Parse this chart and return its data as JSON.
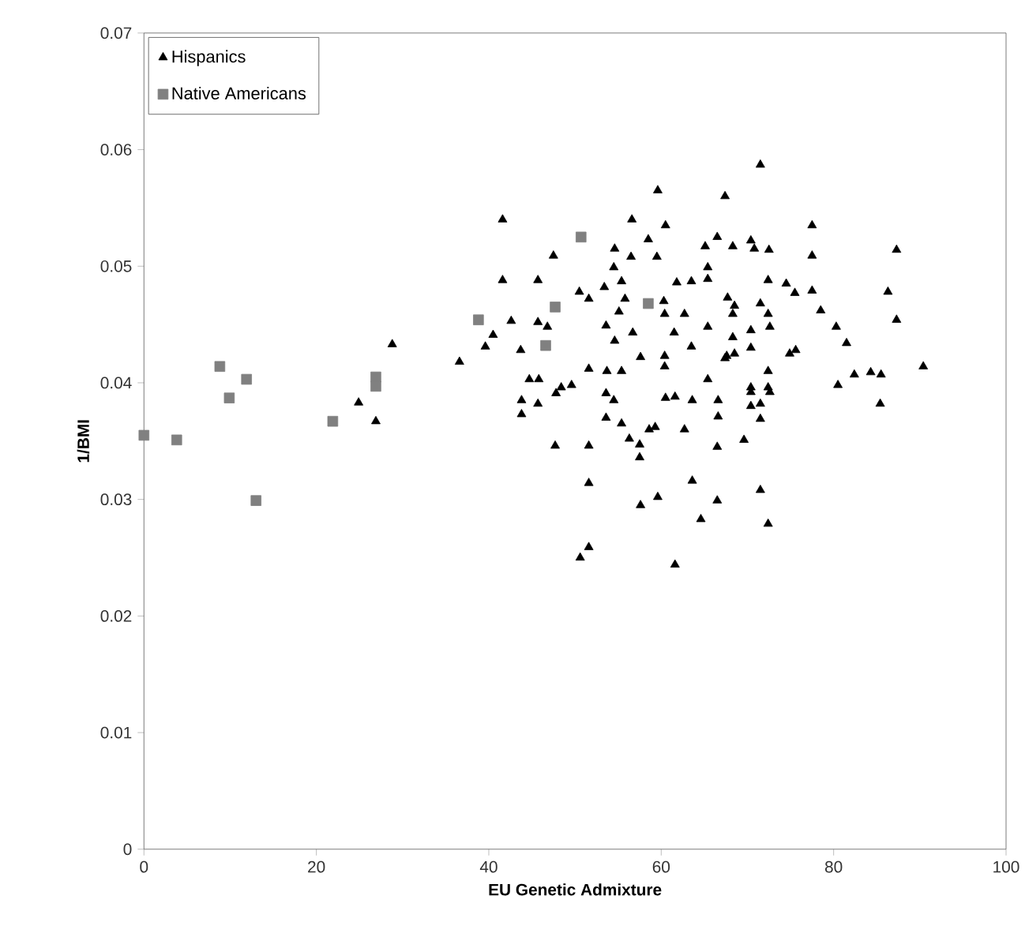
{
  "chart_data": {
    "type": "scatter",
    "xlabel": "EU Genetic Admixture",
    "ylabel": "1/BMI",
    "xlim": [
      0,
      100
    ],
    "xticks": [
      0,
      20,
      40,
      60,
      80,
      100
    ],
    "ylim": [
      0,
      0.07
    ],
    "yticks": [
      0,
      0.01,
      0.02,
      0.03,
      0.04,
      0.05,
      0.06,
      0.07
    ],
    "legend": "top left",
    "grid": false,
    "series": [
      {
        "name": "Hispanics",
        "color": "#000000",
        "marker": "triangle",
        "x": [
          28.8,
          24.9,
          26.9,
          36.6,
          59.6,
          67.4,
          41.6,
          56.6,
          60.5,
          58.5,
          54.6,
          47.5,
          56.5,
          59.5,
          65.1,
          66.5,
          68.3,
          54.5,
          65.4,
          41.6,
          45.7,
          55.4,
          65.4,
          50.5,
          51.6,
          53.4,
          55.8,
          61.8,
          63.5,
          67.7,
          60.3,
          55.1,
          60.4,
          42.6,
          45.7,
          46.8,
          62.7,
          68.3,
          40.5,
          39.6,
          43.7,
          53.6,
          56.7,
          61.5,
          65.4,
          68.3,
          54.6,
          57.6,
          60.4,
          63.5,
          44.7,
          45.8,
          51.6,
          53.7,
          55.4,
          60.4,
          65.4,
          67.6,
          48.4,
          47.8,
          49.6,
          43.8,
          43.8,
          45.7,
          53.6,
          54.5,
          53.6,
          55.4,
          60.5,
          61.6,
          63.6,
          66.6,
          66.6,
          59.3,
          58.6,
          56.3,
          57.5,
          57.5,
          62.7,
          47.7,
          51.6,
          66.5,
          51.6,
          63.6,
          59.6,
          57.6,
          66.5,
          64.6,
          51.6,
          50.6,
          61.6,
          71.5,
          77.5,
          70.4,
          70.8,
          72.5,
          77.5,
          87.3,
          72.4,
          74.5,
          75.5,
          77.5,
          86.3,
          68.5,
          71.5,
          72.4,
          72.6,
          78.5,
          87.3,
          70.4,
          80.3,
          81.5,
          74.9,
          75.6,
          70.4,
          67.4,
          68.5,
          72.4,
          70.4,
          72.4,
          80.5,
          82.4,
          84.3,
          85.5,
          90.4,
          85.4,
          70.4,
          72.6,
          70.4,
          71.5,
          71.5,
          69.6,
          71.5,
          72.4
        ],
        "values": [
          0.0433,
          0.0383,
          0.0367,
          0.0418,
          0.0565,
          0.056,
          0.054,
          0.054,
          0.0535,
          0.0523,
          0.0515,
          0.0509,
          0.0508,
          0.0508,
          0.0517,
          0.0525,
          0.0517,
          0.0499,
          0.0499,
          0.0488,
          0.0488,
          0.0487,
          0.0489,
          0.0478,
          0.0472,
          0.0482,
          0.0472,
          0.0486,
          0.0487,
          0.0473,
          0.047,
          0.0461,
          0.0459,
          0.0453,
          0.0452,
          0.0448,
          0.0459,
          0.0459,
          0.0441,
          0.0431,
          0.0428,
          0.0449,
          0.0443,
          0.0443,
          0.0448,
          0.0439,
          0.0436,
          0.0422,
          0.0423,
          0.0431,
          0.0403,
          0.0403,
          0.0412,
          0.041,
          0.041,
          0.0414,
          0.0403,
          0.0423,
          0.0396,
          0.0391,
          0.0398,
          0.0385,
          0.0373,
          0.0382,
          0.0391,
          0.0385,
          0.037,
          0.0365,
          0.0387,
          0.0388,
          0.0385,
          0.0385,
          0.0371,
          0.0362,
          0.036,
          0.0352,
          0.0347,
          0.0336,
          0.036,
          0.0346,
          0.0346,
          0.0345,
          0.0314,
          0.0316,
          0.0302,
          0.0295,
          0.0299,
          0.0283,
          0.0259,
          0.025,
          0.0244,
          0.0587,
          0.0535,
          0.0522,
          0.0515,
          0.0514,
          0.0509,
          0.0514,
          0.0488,
          0.0485,
          0.0477,
          0.0479,
          0.0478,
          0.0466,
          0.0468,
          0.0459,
          0.0448,
          0.0462,
          0.0454,
          0.0445,
          0.0448,
          0.0434,
          0.0425,
          0.0428,
          0.043,
          0.0421,
          0.0425,
          0.041,
          0.0396,
          0.0396,
          0.0398,
          0.0407,
          0.0409,
          0.0407,
          0.0414,
          0.0382,
          0.0392,
          0.0392,
          0.038,
          0.0382,
          0.0369,
          0.0351,
          0.0308,
          0.0279
        ]
      },
      {
        "name": "Native Americans",
        "color": "#808080",
        "marker": "square",
        "x": [
          0,
          3.8,
          8.8,
          9.9,
          11.9,
          13.0,
          21.9,
          26.9,
          26.9,
          38.8,
          50.7,
          47.7,
          46.6,
          58.5
        ],
        "values": [
          0.0355,
          0.0351,
          0.0414,
          0.0387,
          0.0403,
          0.0299,
          0.0367,
          0.0405,
          0.0397,
          0.0454,
          0.0525,
          0.0465,
          0.0432,
          0.0468
        ]
      }
    ]
  }
}
